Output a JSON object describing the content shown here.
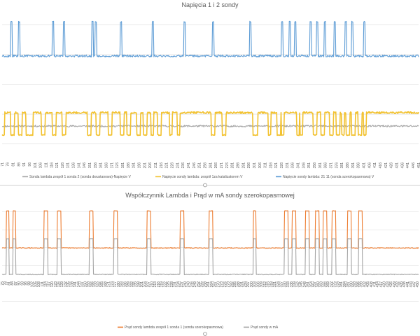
{
  "chart_data": [
    {
      "type": "line",
      "title": "Napięcia 1 i 2 sondy",
      "x_start": 71,
      "x_end": 451,
      "x_step": 5,
      "ylim": [
        0,
        5
      ],
      "gridlines": [
        0.5,
        1.5,
        2.5,
        3.5,
        4.5
      ],
      "grid": true,
      "legend_position": "bottom",
      "series": [
        {
          "name": "Sonda lambda zespół 1 sonda 2 (sonda dwustanowa)-Napięcie V",
          "color": "#a5a5a5",
          "baseline": 1.1,
          "high": 1.6,
          "low": 0.55,
          "noise": 0.03,
          "high_runs": [],
          "low_runs": []
        },
        {
          "name": "Napięcie sondy lambda: zespół 1za katalizatorem V",
          "color": "#f2c230",
          "baseline": 1.55,
          "high": 1.55,
          "low": 0.8,
          "noise": 0.03,
          "high_runs": [],
          "low_runs": [
            [
              71,
              73
            ],
            [
              79,
              82
            ],
            [
              86,
              89
            ],
            [
              93,
              99
            ],
            [
              107,
              110
            ],
            [
              117,
              120
            ],
            [
              126,
              129
            ],
            [
              149,
              152
            ],
            [
              157,
              160
            ],
            [
              168,
              171
            ],
            [
              179,
              182
            ],
            [
              185,
              188
            ],
            [
              194,
              197
            ],
            [
              200,
              203
            ],
            [
              207,
              209
            ],
            [
              213,
              216
            ],
            [
              224,
              226
            ],
            [
              231,
              233
            ],
            [
              262,
              265
            ],
            [
              272,
              275
            ],
            [
              300,
              304
            ],
            [
              314,
              316
            ],
            [
              322,
              325
            ],
            [
              326,
              328
            ],
            [
              340,
              342
            ],
            [
              343,
              345
            ],
            [
              355,
              358
            ],
            [
              362,
              365
            ],
            [
              370,
              373
            ],
            [
              376,
              379
            ],
            [
              381,
              383
            ],
            [
              385,
              388
            ],
            [
              390,
              393
            ],
            [
              396,
              399
            ],
            [
              401,
              403
            ]
          ]
        },
        {
          "name": "Napięcie sondy lambda: 21 11 (sonda szerokopasmowa) V",
          "color": "#5b9bd5",
          "baseline": 3.45,
          "high": 4.6,
          "low": 3.4,
          "noise": 0.035,
          "high_runs": [
            [
              79,
              80
            ],
            [
              86,
              87
            ],
            [
              117,
              118
            ],
            [
              127,
              128
            ],
            [
              153,
              154
            ],
            [
              156,
              157
            ],
            [
              179,
              180
            ],
            [
              208,
              209
            ],
            [
              237,
              238
            ],
            [
              263,
              264
            ],
            [
              297,
              298
            ],
            [
              326,
              327
            ],
            [
              333,
              334
            ],
            [
              338,
              339
            ],
            [
              352,
              353
            ],
            [
              358,
              359
            ],
            [
              365,
              366
            ],
            [
              374,
              375
            ],
            [
              384,
              385
            ],
            [
              390,
              391
            ],
            [
              401,
              402
            ]
          ],
          "low_runs": []
        }
      ],
      "x_ticks": [
        71,
        76,
        81,
        86,
        91,
        96,
        101,
        106,
        111,
        116,
        121,
        126,
        131,
        136,
        141,
        146,
        151,
        156,
        161,
        166,
        171,
        176,
        181,
        186,
        191,
        196,
        201,
        206,
        211,
        216,
        221,
        226,
        231,
        236,
        241,
        246,
        251,
        256,
        261,
        266,
        271,
        276,
        281,
        286,
        291,
        296,
        301,
        306,
        311,
        316,
        321,
        326,
        331,
        336,
        341,
        346,
        351,
        356,
        361,
        366,
        371,
        376,
        381,
        386,
        391,
        396,
        401,
        406,
        411,
        416,
        421,
        426,
        431,
        436,
        441,
        446,
        451
      ]
    },
    {
      "type": "line",
      "title": "Współczynnik Lambda i Prąd w mA sondy szerokopasmowej",
      "x_start": 75,
      "x_end": 451,
      "x_step": 3,
      "ylim": [
        -1,
        2
      ],
      "gridlines": [
        -0.75,
        -0.25,
        0.25,
        0.75,
        1.25,
        1.75
      ],
      "grid": true,
      "legend_position": "bottom",
      "series": [
        {
          "name": "Prąd sondy lambda zespół 1 sonda 1 (sonda szerokopasmowa)",
          "color": "#ed7d31",
          "baseline": 0.74,
          "high": 1.78,
          "low": 0.74,
          "noise": 0.012,
          "high_runs": [
            [
              79,
              81
            ],
            [
              85,
              87
            ],
            [
              113,
              116
            ],
            [
              125,
              128
            ],
            [
              154,
              157
            ],
            [
              176,
              179
            ],
            [
              206,
              209
            ],
            [
              236,
              239
            ],
            [
              262,
              265
            ],
            [
              302,
              304
            ],
            [
              330,
              333
            ],
            [
              337,
              340
            ],
            [
              349,
              352
            ],
            [
              358,
              361
            ],
            [
              365,
              368
            ],
            [
              373,
              376
            ],
            [
              387,
              390
            ],
            [
              397,
              400
            ]
          ],
          "low_runs": []
        },
        {
          "name": "Prąd sondy w mA",
          "color": "#a5a5a5",
          "baseline": 0.0,
          "high": 1.0,
          "low": 0.0,
          "noise": 0.012,
          "high_runs": [
            [
              79,
              81
            ],
            [
              85,
              87
            ],
            [
              113,
              116
            ],
            [
              125,
              128
            ],
            [
              154,
              157
            ],
            [
              176,
              179
            ],
            [
              206,
              209
            ],
            [
              236,
              239
            ],
            [
              262,
              265
            ],
            [
              302,
              304
            ],
            [
              330,
              333
            ],
            [
              337,
              340
            ],
            [
              349,
              352
            ],
            [
              358,
              361
            ],
            [
              365,
              368
            ],
            [
              373,
              376
            ],
            [
              387,
              390
            ],
            [
              397,
              400
            ]
          ],
          "low_runs": []
        }
      ],
      "x_ticks": [
        75,
        78,
        81,
        84,
        87,
        90,
        93,
        96,
        99,
        102,
        105,
        108,
        111,
        114,
        117,
        120,
        123,
        126,
        129,
        132,
        135,
        138,
        141,
        144,
        147,
        150,
        153,
        156,
        159,
        162,
        165,
        168,
        171,
        174,
        177,
        180,
        183,
        186,
        189,
        192,
        195,
        198,
        201,
        204,
        207,
        210,
        213,
        216,
        219,
        222,
        225,
        228,
        231,
        234,
        237,
        240,
        243,
        246,
        249,
        252,
        255,
        258,
        261,
        264,
        267,
        270,
        273,
        276,
        279,
        282,
        285,
        288,
        291,
        294,
        297,
        300,
        303,
        306,
        309,
        312,
        315,
        318,
        321,
        324,
        327,
        330,
        333,
        336,
        339,
        342,
        345,
        348,
        351,
        354,
        357,
        360,
        363,
        366,
        369,
        372,
        375,
        378,
        381,
        384,
        387,
        390,
        393,
        396,
        399,
        402,
        405,
        408,
        411,
        414,
        417,
        420,
        423,
        426,
        429,
        432,
        435,
        438,
        441,
        444,
        447,
        450
      ]
    }
  ]
}
